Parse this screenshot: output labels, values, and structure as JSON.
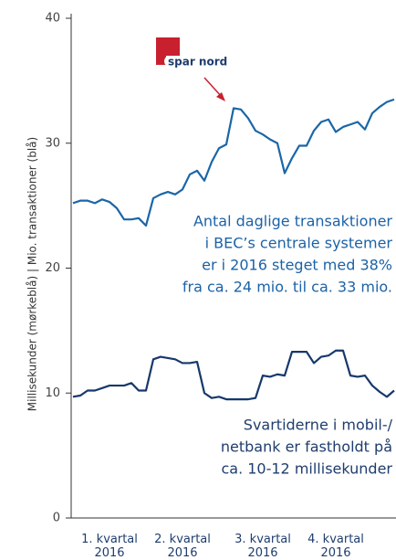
{
  "chart_data": {
    "type": "line",
    "ylabel": "Millisekunder (mørkeblå)  |  Mio. transaktioner (blå)",
    "categories": [
      null,
      null,
      null,
      null,
      null,
      "1. kvartal 2016",
      null,
      null,
      null,
      null,
      null,
      null,
      null,
      null,
      null,
      "2. kvartal 2016",
      null,
      null,
      null,
      null,
      null,
      null,
      null,
      null,
      null,
      null,
      "3. kvartal 2016",
      null,
      null,
      null,
      null,
      null,
      null,
      null,
      null,
      null,
      "4. kvartal 2016",
      null,
      null,
      null,
      null,
      null,
      null,
      null,
      null
    ],
    "series": [
      {
        "name": "Mio. transaktioner (blå)",
        "color": "#1a66a8",
        "values": [
          25.2,
          25.4,
          25.4,
          25.2,
          25.5,
          25.3,
          24.8,
          23.9,
          23.9,
          24.0,
          23.4,
          25.6,
          25.9,
          26.1,
          25.9,
          26.3,
          27.5,
          27.8,
          27.0,
          28.5,
          29.6,
          29.9,
          32.8,
          32.7,
          32.0,
          31.0,
          30.7,
          30.3,
          30.0,
          27.6,
          28.8,
          29.8,
          29.8,
          31.0,
          31.7,
          31.9,
          30.9,
          31.3,
          31.5,
          31.7,
          31.1,
          32.4,
          32.9,
          33.3,
          33.5
        ]
      },
      {
        "name": "Millisekunder (mørkeblå)",
        "color": "#16386b",
        "values": [
          9.7,
          9.8,
          10.2,
          10.2,
          10.4,
          10.6,
          10.6,
          10.6,
          10.8,
          10.2,
          10.2,
          12.7,
          12.9,
          12.8,
          12.7,
          12.4,
          12.4,
          12.5,
          10.0,
          9.6,
          9.7,
          9.5,
          9.5,
          9.5,
          9.5,
          9.6,
          11.4,
          11.3,
          11.5,
          11.4,
          13.3,
          13.3,
          13.3,
          12.4,
          12.9,
          13.0,
          13.4,
          13.4,
          11.4,
          11.3,
          11.4,
          10.6,
          10.1,
          9.7,
          10.2
        ]
      }
    ],
    "ylim": [
      0,
      40
    ],
    "yticks": [
      0,
      10,
      20,
      30,
      40
    ],
    "annotations": [
      {
        "lines": [
          "Antal daglige transaktioner",
          "i BEC’s centrale systemer",
          "er i 2016 steget med 38%",
          "fra ca. 24 mio. til ca. 33 mio."
        ]
      },
      {
        "lines": [
          "Svartiderne i mobil-/",
          "netbank er fastholdt på",
          "ca. 10-12 millisekunder"
        ]
      }
    ],
    "logo": "spar nord"
  }
}
